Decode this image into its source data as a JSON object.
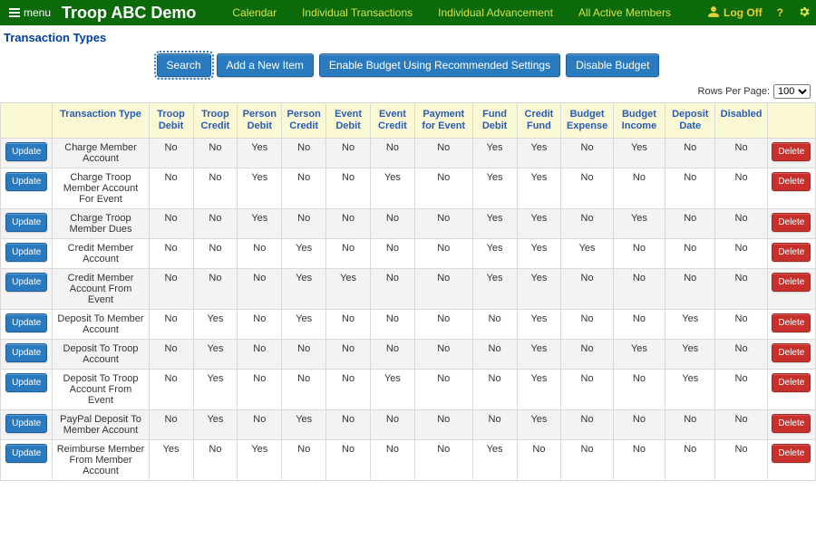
{
  "topbar": {
    "menu_label": "menu",
    "brand": "Troop ABC Demo",
    "links": [
      "Calendar",
      "Individual Transactions",
      "Individual Advancement",
      "All Active Members"
    ],
    "logoff": "Log Off",
    "help_char": "?",
    "gear": "gear"
  },
  "page_title": "Transaction Types",
  "toolbar": {
    "search": "Search",
    "add": "Add a New Item",
    "enable": "Enable Budget Using Recommended Settings",
    "disable": "Disable Budget"
  },
  "rows_per_page": {
    "label": "Rows Per Page:",
    "value": "100"
  },
  "table": {
    "update_label": "Update",
    "delete_label": "Delete",
    "headers": [
      "",
      "Transaction Type",
      "Troop Debit",
      "Troop Credit",
      "Person Debit",
      "Person Credit",
      "Event Debit",
      "Event Credit",
      "Payment for Event",
      "Fund Debit",
      "Credit Fund",
      "Budget Expense",
      "Budget Income",
      "Deposit Date",
      "Disabled",
      ""
    ],
    "rows": [
      {
        "name": "Charge Member Account",
        "flags": [
          "No",
          "No",
          "Yes",
          "No",
          "No",
          "No",
          "No",
          "Yes",
          "Yes",
          "No",
          "Yes",
          "No",
          "No"
        ]
      },
      {
        "name": "Charge Troop Member Account For Event",
        "flags": [
          "No",
          "No",
          "Yes",
          "No",
          "No",
          "Yes",
          "No",
          "Yes",
          "Yes",
          "No",
          "No",
          "No",
          "No"
        ]
      },
      {
        "name": "Charge Troop Member Dues",
        "flags": [
          "No",
          "No",
          "Yes",
          "No",
          "No",
          "No",
          "No",
          "Yes",
          "Yes",
          "No",
          "Yes",
          "No",
          "No"
        ]
      },
      {
        "name": "Credit Member Account",
        "flags": [
          "No",
          "No",
          "No",
          "Yes",
          "No",
          "No",
          "No",
          "Yes",
          "Yes",
          "Yes",
          "No",
          "No",
          "No"
        ]
      },
      {
        "name": "Credit Member Account From Event",
        "flags": [
          "No",
          "No",
          "No",
          "Yes",
          "Yes",
          "No",
          "No",
          "Yes",
          "Yes",
          "No",
          "No",
          "No",
          "No"
        ]
      },
      {
        "name": "Deposit To Member Account",
        "flags": [
          "No",
          "Yes",
          "No",
          "Yes",
          "No",
          "No",
          "No",
          "No",
          "Yes",
          "No",
          "No",
          "Yes",
          "No"
        ]
      },
      {
        "name": "Deposit To Troop Account",
        "flags": [
          "No",
          "Yes",
          "No",
          "No",
          "No",
          "No",
          "No",
          "No",
          "Yes",
          "No",
          "Yes",
          "Yes",
          "No"
        ]
      },
      {
        "name": "Deposit To Troop Account From Event",
        "flags": [
          "No",
          "Yes",
          "No",
          "No",
          "No",
          "Yes",
          "No",
          "No",
          "Yes",
          "No",
          "No",
          "Yes",
          "No"
        ]
      },
      {
        "name": "PayPal Deposit To Member Account",
        "flags": [
          "No",
          "Yes",
          "No",
          "Yes",
          "No",
          "No",
          "No",
          "No",
          "Yes",
          "No",
          "No",
          "No",
          "No"
        ]
      },
      {
        "name": "Reimburse Member From Member Account",
        "flags": [
          "Yes",
          "No",
          "Yes",
          "No",
          "No",
          "No",
          "No",
          "Yes",
          "No",
          "No",
          "No",
          "No",
          "No"
        ]
      }
    ]
  }
}
